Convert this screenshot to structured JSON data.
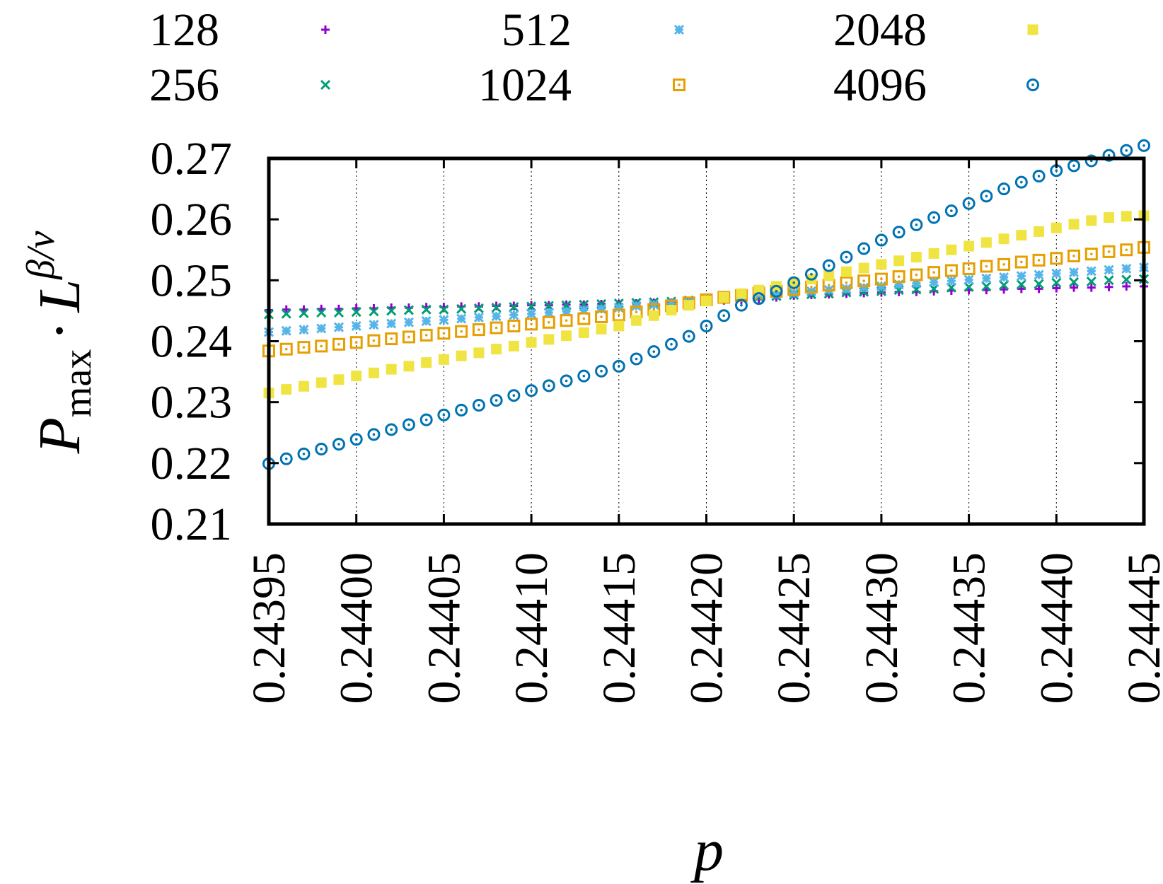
{
  "chart_data": {
    "type": "scatter",
    "xlabel": "p",
    "ylabel": {
      "base": "P",
      "sub": "max",
      "dot": "·",
      "power_base": "L",
      "exponent": "β/ν"
    },
    "xlim": [
      0.24395,
      0.24445
    ],
    "ylim": [
      0.21,
      0.27
    ],
    "x_ticks": [
      "0.24395",
      "0.24400",
      "0.24405",
      "0.24410",
      "0.24415",
      "0.24420",
      "0.24425",
      "0.24430",
      "0.24435",
      "0.24440",
      "0.24445"
    ],
    "y_ticks": [
      "0.21",
      "0.22",
      "0.23",
      "0.24",
      "0.25",
      "0.26",
      "0.27"
    ],
    "grid": "vertical dotted",
    "legend_position": "top",
    "x": [
      0.24395,
      0.24396,
      0.24397,
      0.24398,
      0.24399,
      0.244,
      0.24401,
      0.24402,
      0.24403,
      0.24404,
      0.24405,
      0.24406,
      0.24407,
      0.24408,
      0.24409,
      0.2441,
      0.24411,
      0.24412,
      0.24413,
      0.24414,
      0.24415,
      0.24416,
      0.24417,
      0.24418,
      0.24419,
      0.2442,
      0.24421,
      0.24422,
      0.24423,
      0.24424,
      0.24425,
      0.24426,
      0.24427,
      0.24428,
      0.24429,
      0.2443,
      0.24431,
      0.24432,
      0.24433,
      0.24434,
      0.24435,
      0.24436,
      0.24437,
      0.24438,
      0.24439,
      0.2444,
      0.24441,
      0.24442,
      0.24443,
      0.24444,
      0.24445
    ],
    "series": [
      {
        "name": "128",
        "marker": "plus",
        "color": "#9400d3",
        "values": [
          0.2451,
          0.2452,
          0.2452,
          0.2453,
          0.2453,
          0.2454,
          0.2454,
          0.2455,
          0.2455,
          0.2456,
          0.2456,
          0.2457,
          0.2457,
          0.2458,
          0.2458,
          0.2459,
          0.2459,
          0.246,
          0.246,
          0.2461,
          0.2461,
          0.2462,
          0.2463,
          0.2463,
          0.2464,
          0.2465,
          0.2467,
          0.2468,
          0.2469,
          0.2472,
          0.2475,
          0.2476,
          0.2477,
          0.2478,
          0.2479,
          0.248,
          0.2481,
          0.2481,
          0.2482,
          0.2483,
          0.2484,
          0.2484,
          0.2485,
          0.2486,
          0.2486,
          0.2487,
          0.2488,
          0.2488,
          0.2489,
          0.249,
          0.249
        ]
      },
      {
        "name": "256",
        "marker": "cross",
        "color": "#009e73",
        "values": [
          0.2444,
          0.2445,
          0.2446,
          0.2447,
          0.2447,
          0.2448,
          0.2449,
          0.245,
          0.2451,
          0.2452,
          0.2452,
          0.2453,
          0.2454,
          0.2455,
          0.2456,
          0.2457,
          0.2458,
          0.2459,
          0.246,
          0.2461,
          0.2462,
          0.2463,
          0.2464,
          0.2465,
          0.2467,
          0.2468,
          0.247,
          0.2471,
          0.2473,
          0.2474,
          0.2476,
          0.2477,
          0.2478,
          0.248,
          0.2481,
          0.2482,
          0.2484,
          0.2485,
          0.2486,
          0.2488,
          0.2489,
          0.249,
          0.2492,
          0.2493,
          0.2494,
          0.2496,
          0.2497,
          0.2498,
          0.25,
          0.2501,
          0.2502
        ]
      },
      {
        "name": "512",
        "marker": "star",
        "color": "#56b4e9",
        "values": [
          0.2415,
          0.2417,
          0.2419,
          0.2421,
          0.2423,
          0.2425,
          0.2427,
          0.2429,
          0.2431,
          0.2433,
          0.2435,
          0.2437,
          0.2439,
          0.2441,
          0.2443,
          0.2445,
          0.2447,
          0.2449,
          0.2451,
          0.2453,
          0.2455,
          0.2458,
          0.246,
          0.2462,
          0.2464,
          0.2467,
          0.2471,
          0.2473,
          0.2475,
          0.2477,
          0.2479,
          0.2482,
          0.2484,
          0.2486,
          0.2488,
          0.249,
          0.2493,
          0.2495,
          0.2497,
          0.2499,
          0.2501,
          0.2503,
          0.2505,
          0.2507,
          0.2509,
          0.2511,
          0.2513,
          0.2515,
          0.2517,
          0.2519,
          0.2521
        ]
      },
      {
        "name": "1024",
        "marker": "box",
        "color": "#e69f00",
        "values": [
          0.2384,
          0.2387,
          0.239,
          0.2392,
          0.2395,
          0.2398,
          0.2401,
          0.2404,
          0.2407,
          0.241,
          0.2413,
          0.2416,
          0.2419,
          0.2422,
          0.2425,
          0.2428,
          0.2431,
          0.2434,
          0.2437,
          0.244,
          0.2443,
          0.2448,
          0.2452,
          0.2458,
          0.2463,
          0.2468,
          0.2472,
          0.2475,
          0.2479,
          0.2482,
          0.2485,
          0.2489,
          0.2492,
          0.2496,
          0.2499,
          0.2502,
          0.2506,
          0.2509,
          0.2513,
          0.2516,
          0.2519,
          0.2523,
          0.2526,
          0.253,
          0.2533,
          0.2536,
          0.254,
          0.2543,
          0.2547,
          0.255,
          0.2554
        ]
      },
      {
        "name": "2048",
        "marker": "square",
        "color": "#f0e442",
        "values": [
          0.2315,
          0.2321,
          0.2326,
          0.2332,
          0.2337,
          0.2343,
          0.2348,
          0.2354,
          0.2359,
          0.2365,
          0.237,
          0.2376,
          0.2381,
          0.2387,
          0.2392,
          0.2398,
          0.2403,
          0.2409,
          0.2414,
          0.242,
          0.2425,
          0.2434,
          0.2442,
          0.2451,
          0.2459,
          0.2466,
          0.2472,
          0.2478,
          0.2484,
          0.249,
          0.2496,
          0.2502,
          0.2508,
          0.2514,
          0.252,
          0.2526,
          0.2532,
          0.2538,
          0.2544,
          0.255,
          0.2556,
          0.2562,
          0.2568,
          0.2574,
          0.258,
          0.2586,
          0.2592,
          0.2598,
          0.2603,
          0.2605,
          0.2606
        ]
      },
      {
        "name": "4096",
        "marker": "circle",
        "color": "#0072b2",
        "values": [
          0.2199,
          0.2207,
          0.2215,
          0.2223,
          0.2231,
          0.2239,
          0.2247,
          0.2255,
          0.2263,
          0.2271,
          0.2279,
          0.2287,
          0.2295,
          0.2303,
          0.2311,
          0.2319,
          0.2327,
          0.2335,
          0.2343,
          0.2351,
          0.2359,
          0.2371,
          0.2383,
          0.2395,
          0.2408,
          0.2425,
          0.2442,
          0.2459,
          0.247,
          0.2482,
          0.2496,
          0.251,
          0.2524,
          0.2538,
          0.2552,
          0.2566,
          0.2579,
          0.2591,
          0.2603,
          0.2614,
          0.2626,
          0.2638,
          0.265,
          0.2661,
          0.2671,
          0.268,
          0.2688,
          0.2696,
          0.2705,
          0.2713,
          0.2721
        ]
      }
    ]
  }
}
